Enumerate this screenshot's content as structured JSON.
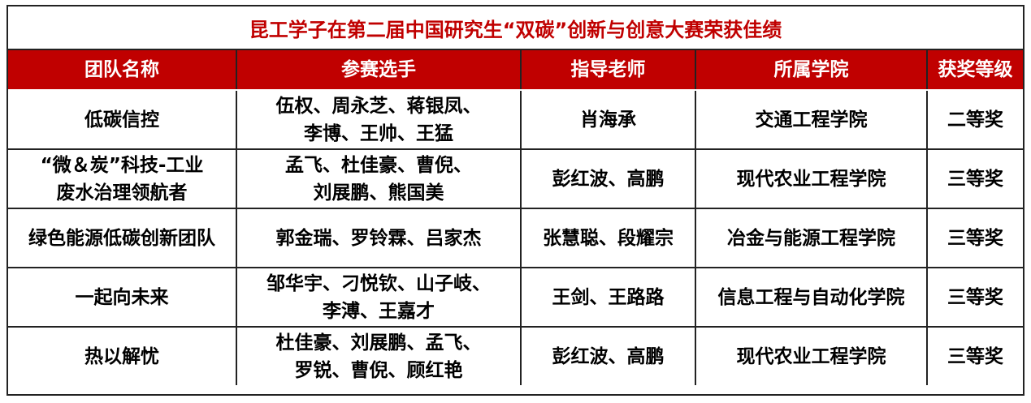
{
  "title": "昆工学子在第二届中国研究生“双碳”创新与创意大赛荣获佳绩",
  "colors": {
    "accent": "#c00000"
  },
  "headers": [
    "团队名称",
    "参赛选手",
    "指导老师",
    "所属学院",
    "获奖等级"
  ],
  "rows": [
    {
      "team": "低碳信控",
      "members": [
        "伍权、周永芝、蒋银凤、",
        "李博、王帅、王猛"
      ],
      "advisor": "肖海承",
      "college": "交通工程学院",
      "award": "二等奖"
    },
    {
      "team": [
        "“微＆炭”科技-工业",
        "废水治理领航者"
      ],
      "members": [
        "孟飞、杜佳豪、曹倪、",
        "刘展鹏、熊国美"
      ],
      "advisor": "彭红波、高鹏",
      "college": "现代农业工程学院",
      "award": "三等奖"
    },
    {
      "team": "绿色能源低碳创新团队",
      "members": [
        "郭金瑞、罗铃霖、吕家杰"
      ],
      "advisor": "张慧聪、段耀宗",
      "college": "冶金与能源工程学院",
      "award": "三等奖"
    },
    {
      "team": "一起向未来",
      "members": [
        "邹华宇、刁悦钦、山子岐、",
        "李溥、王嘉才"
      ],
      "advisor": "王剑、王路路",
      "college": "信息工程与自动化学院",
      "award": "三等奖"
    },
    {
      "team": "热以解忧",
      "members": [
        "杜佳豪、刘展鹏、孟飞、",
        "罗锐、曹倪、顾红艳"
      ],
      "advisor": "彭红波、高鹏",
      "college": "现代农业工程学院",
      "award": "三等奖"
    }
  ]
}
